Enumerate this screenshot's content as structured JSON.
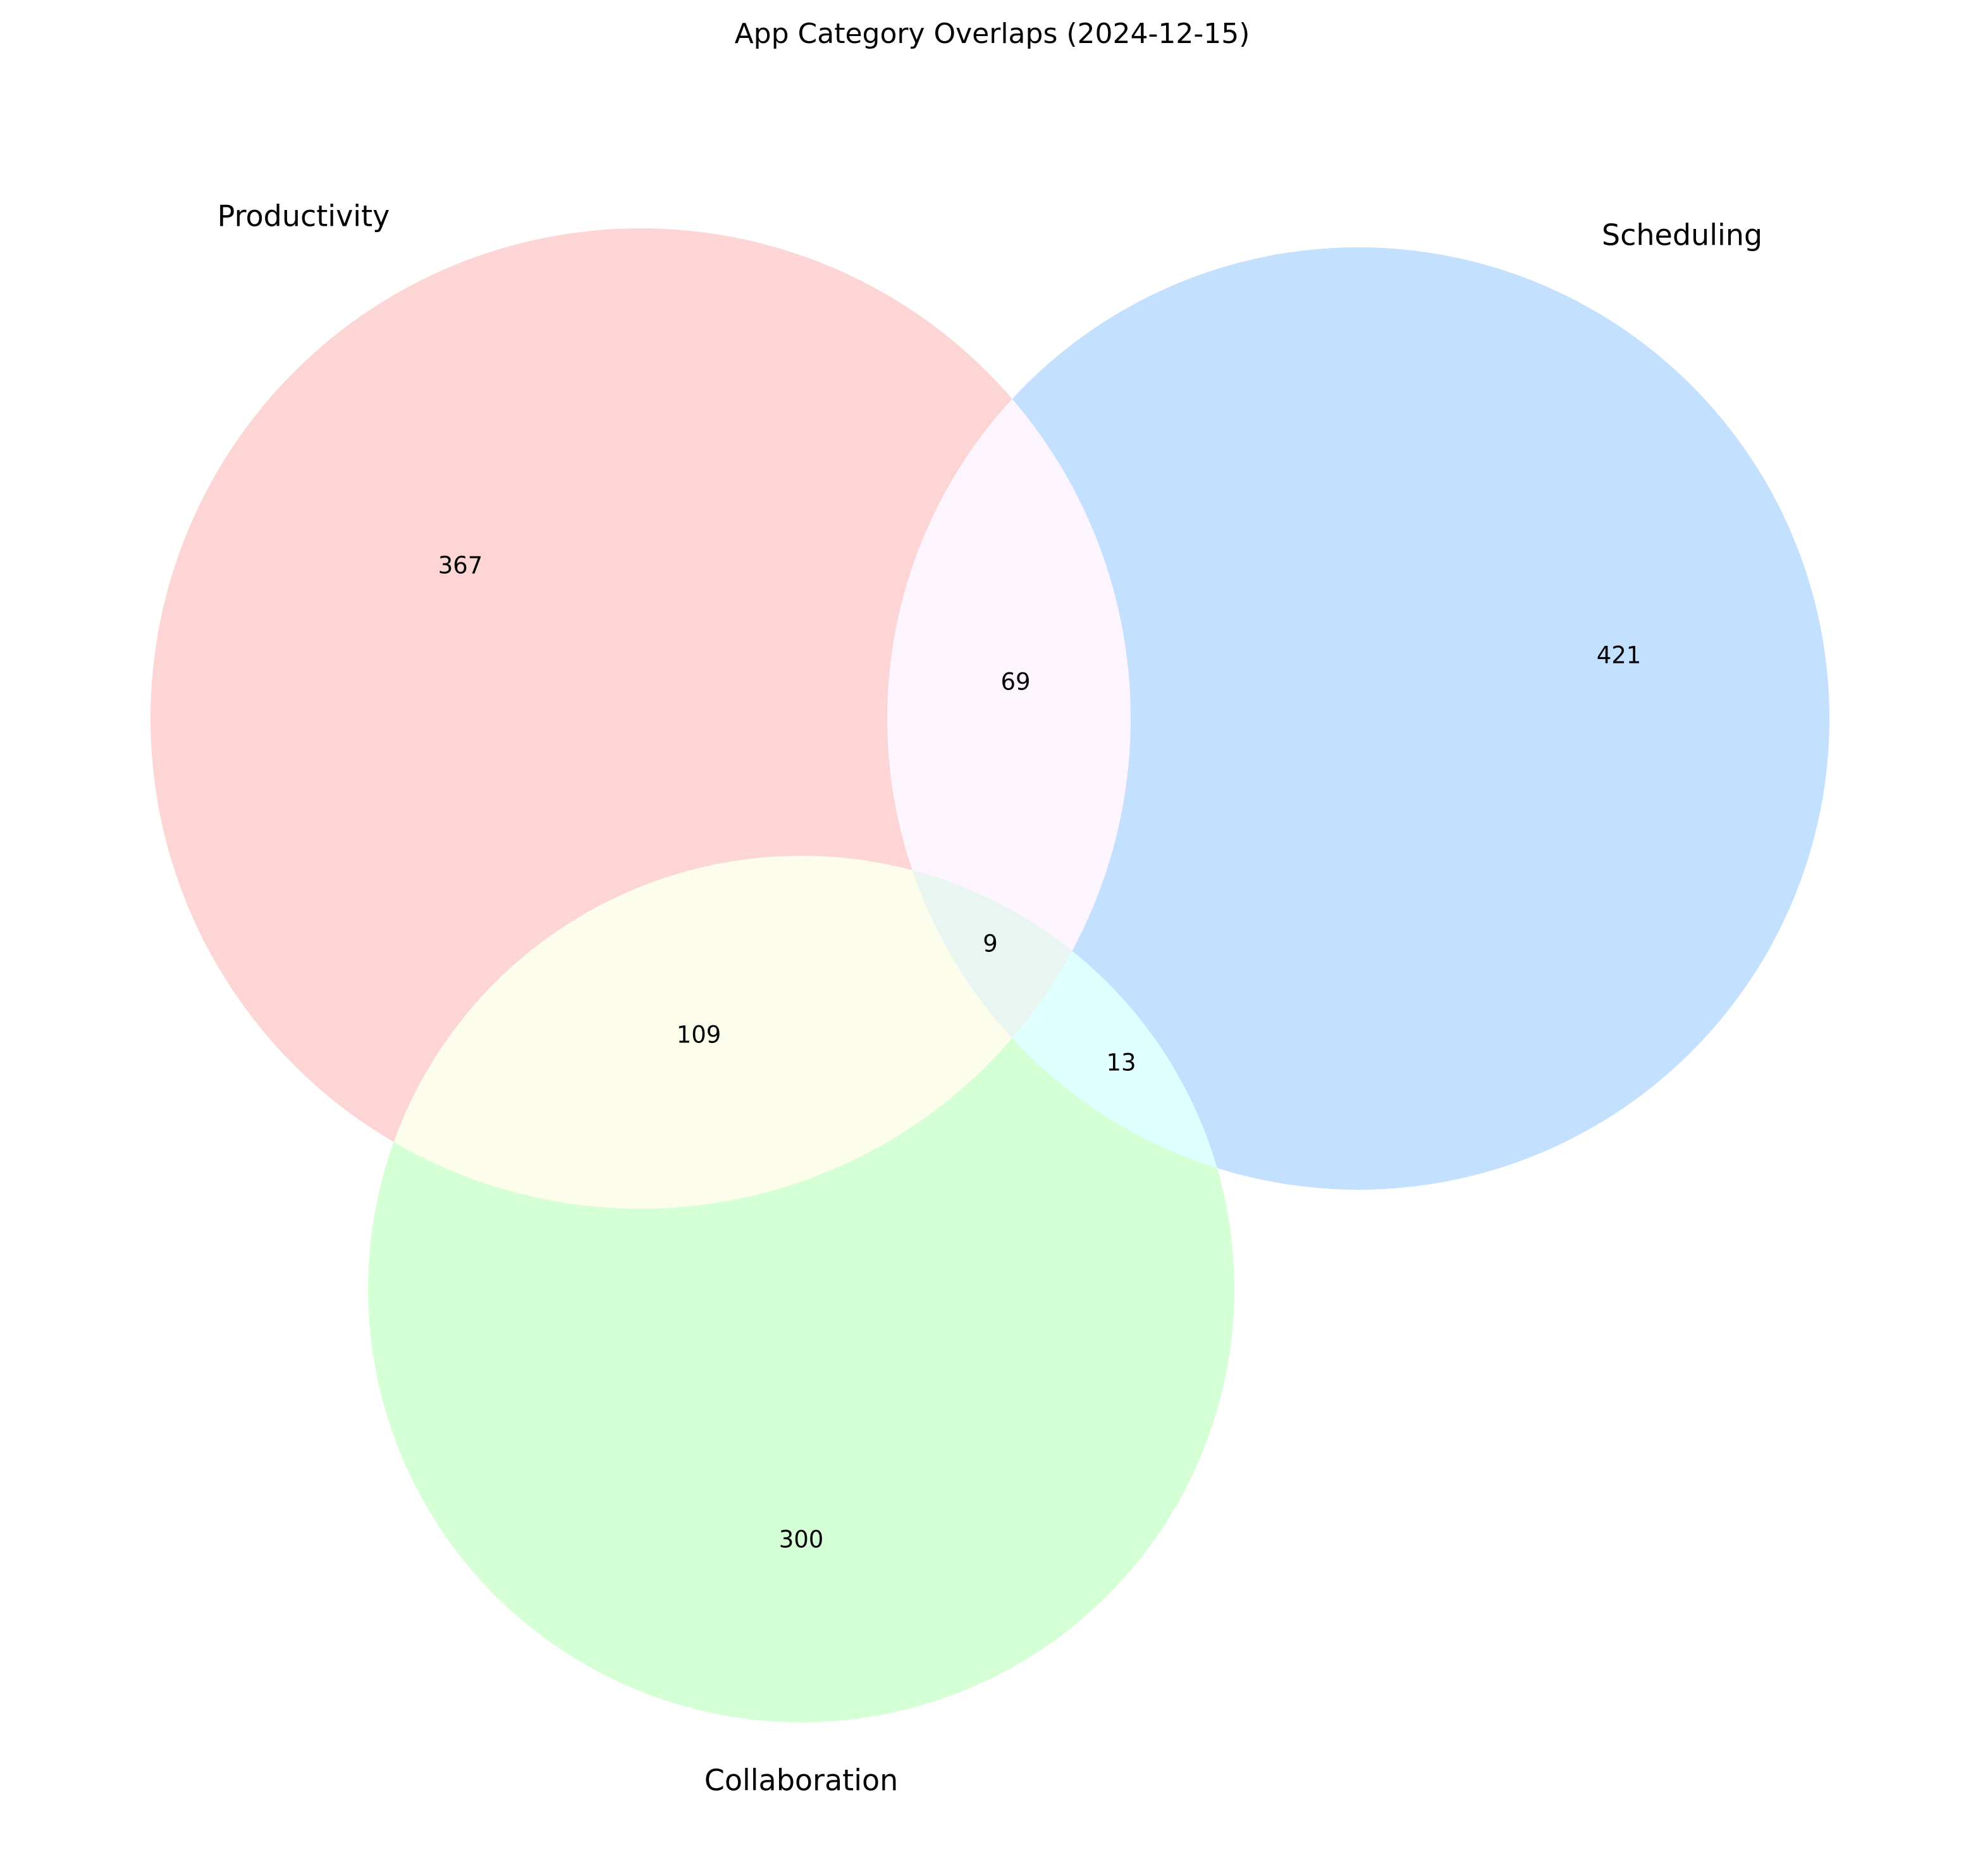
{
  "chart_data": {
    "type": "venn",
    "title": "App Category Overlaps (2024-12-15)",
    "sets": [
      {
        "key": "A",
        "name": "Productivity",
        "color": "#FFB3B3"
      },
      {
        "key": "B",
        "name": "Scheduling",
        "color": "#99CCFF"
      },
      {
        "key": "C",
        "name": "Collaboration",
        "color": "#B3FFB3"
      }
    ],
    "regions": [
      {
        "sets": [
          "A"
        ],
        "value": 367
      },
      {
        "sets": [
          "B"
        ],
        "value": 421
      },
      {
        "sets": [
          "C"
        ],
        "value": 300
      },
      {
        "sets": [
          "A",
          "B"
        ],
        "value": 69
      },
      {
        "sets": [
          "A",
          "C"
        ],
        "value": 109
      },
      {
        "sets": [
          "B",
          "C"
        ],
        "value": 13
      },
      {
        "sets": [
          "A",
          "B",
          "C"
        ],
        "value": 9
      }
    ],
    "region_colors": {
      "A": "#FDD5D5",
      "B": "#C3E0FF",
      "C": "#D5FFD5",
      "AB": "#FDF5FD",
      "AC": "#FDFDEB",
      "BC": "#E0FFFF",
      "ABC": "#E8F5F0"
    }
  }
}
